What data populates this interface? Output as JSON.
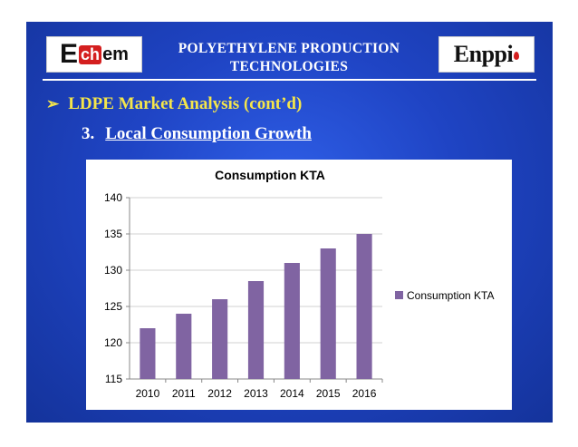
{
  "header": {
    "left_logo": {
      "text": "Echem",
      "parts": [
        "E",
        "ch",
        "em"
      ]
    },
    "title_line1": "POLYETHYLENE PRODUCTION",
    "title_line2": "TECHNOLOGIES",
    "right_logo": {
      "text": "Enppi"
    }
  },
  "bullet": {
    "icon": "arrow-bullet-icon",
    "text": "LDPE Market Analysis (cont’d)"
  },
  "subheading": {
    "number": "3.",
    "text": "Local Consumption Growth"
  },
  "colors": {
    "bar": "#8064a2",
    "grid": "#d0d0d0",
    "bullet": "#f5e64a"
  },
  "chart_data": {
    "type": "bar",
    "title": "Consumption KTA",
    "categories": [
      "2010",
      "2011",
      "2012",
      "2013",
      "2014",
      "2015",
      "2016"
    ],
    "series": [
      {
        "name": "Consumption KTA",
        "values": [
          122,
          124,
          126,
          128.5,
          131,
          133,
          135
        ]
      }
    ],
    "ylim": [
      115,
      140
    ],
    "yticks": [
      115,
      120,
      125,
      130,
      135,
      140
    ],
    "xlabel": "",
    "ylabel": "",
    "grid": true,
    "legend": "right"
  }
}
